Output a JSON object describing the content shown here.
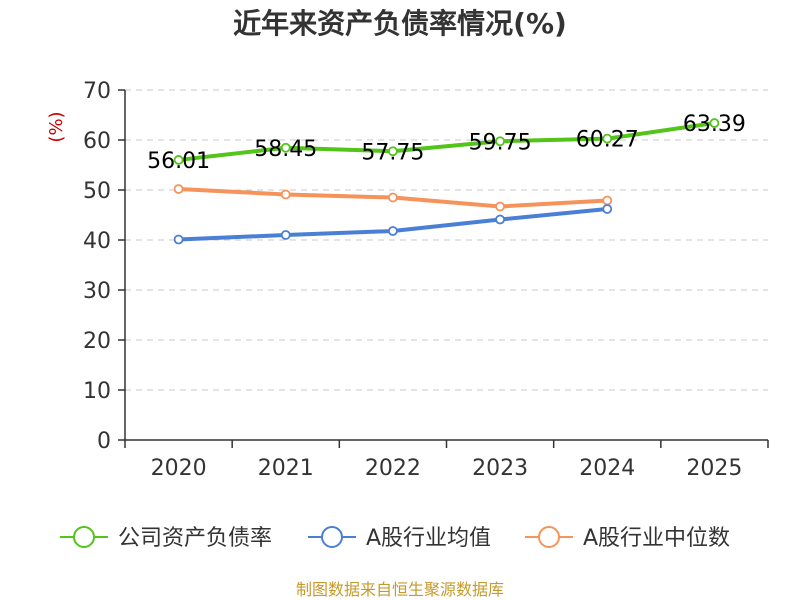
{
  "chart_data": {
    "type": "line",
    "title": "近年来资产负债率情况(%)",
    "ylabel": "(%)",
    "xlabel": "",
    "categories": [
      "2020",
      "2021",
      "2022",
      "2023",
      "2024",
      "2025"
    ],
    "yticks": [
      "0",
      "10",
      "20",
      "30",
      "40",
      "50",
      "60",
      "70"
    ],
    "ylim": [
      0,
      70
    ],
    "grid": true,
    "legend_position": "bottom",
    "series": [
      {
        "name": "公司资产负债率",
        "color": "#52c41a",
        "values": [
          56.01,
          58.45,
          57.75,
          59.75,
          60.27,
          63.39
        ],
        "labels": [
          "56.01",
          "58.45",
          "57.75",
          "59.75",
          "60.27",
          "63.39"
        ]
      },
      {
        "name": "A股行业均值",
        "color": "#4a7fd6",
        "values": [
          40.1,
          41.0,
          41.8,
          44.1,
          46.2,
          null
        ],
        "labels": []
      },
      {
        "name": "A股行业中位数",
        "color": "#f5935a",
        "values": [
          50.2,
          49.1,
          48.5,
          46.7,
          47.9,
          null
        ],
        "labels": []
      }
    ]
  },
  "footer": {
    "source": "制图数据来自恒生聚源数据库"
  }
}
